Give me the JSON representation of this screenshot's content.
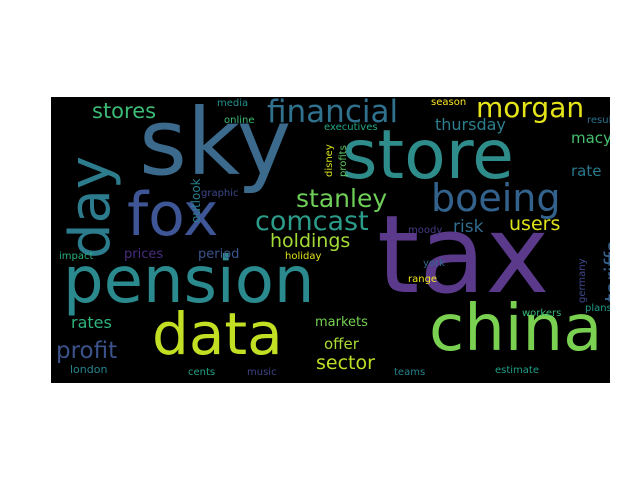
{
  "wordcloud": {
    "background": "#000000",
    "words": [
      {
        "text": "tax",
        "color": "#5b3a8c",
        "vertical": false
      },
      {
        "text": "sky",
        "color": "#3b6a8c",
        "vertical": false
      },
      {
        "text": "store",
        "color": "#2e8c8a",
        "vertical": false
      },
      {
        "text": "pension",
        "color": "#2a8a8e",
        "vertical": false
      },
      {
        "text": "china",
        "color": "#7ad151",
        "vertical": false
      },
      {
        "text": "data",
        "color": "#c2df23",
        "vertical": false
      },
      {
        "text": "fox",
        "color": "#3e5596",
        "vertical": false
      },
      {
        "text": "day",
        "color": "#2c7c8e",
        "vertical": true
      },
      {
        "text": "boeing",
        "color": "#33628d",
        "vertical": false
      },
      {
        "text": "financial",
        "color": "#30718e",
        "vertical": false
      },
      {
        "text": "morgan",
        "color": "#e5e419",
        "vertical": false
      },
      {
        "text": "comcast",
        "color": "#2b9b8a",
        "vertical": false
      },
      {
        "text": "stanley",
        "color": "#6ece58",
        "vertical": false
      },
      {
        "text": "profit",
        "color": "#3b528b",
        "vertical": false
      },
      {
        "text": "stores",
        "color": "#3bbb75",
        "vertical": false
      },
      {
        "text": "holdings",
        "color": "#a2da37",
        "vertical": false
      },
      {
        "text": "tariffs",
        "color": "#34618d",
        "vertical": true
      },
      {
        "text": "users",
        "color": "#dde318",
        "vertical": false
      },
      {
        "text": "sector",
        "color": "#bddf26",
        "vertical": false
      },
      {
        "text": "thursday",
        "color": "#2c7e8e",
        "vertical": false
      },
      {
        "text": "rates",
        "color": "#2fb47c",
        "vertical": false
      },
      {
        "text": "risk",
        "color": "#2f6c8e",
        "vertical": false
      },
      {
        "text": "macy",
        "color": "#46c06f",
        "vertical": false
      },
      {
        "text": "rate",
        "color": "#2a788e",
        "vertical": false
      },
      {
        "text": "offer",
        "color": "#a8db34",
        "vertical": false
      },
      {
        "text": "markets",
        "color": "#75d054",
        "vertical": false
      },
      {
        "text": "period",
        "color": "#3a548c",
        "vertical": false
      },
      {
        "text": "prices",
        "color": "#472d7b",
        "vertical": false
      },
      {
        "text": "outlook",
        "color": "#277f8e",
        "vertical": true
      },
      {
        "text": "london",
        "color": "#25858e",
        "vertical": false
      },
      {
        "text": "media",
        "color": "#21918c",
        "vertical": false
      },
      {
        "text": "online",
        "color": "#3dbc74",
        "vertical": false
      },
      {
        "text": "executives",
        "color": "#22a884",
        "vertical": false
      },
      {
        "text": "season",
        "color": "#fde725",
        "vertical": false
      },
      {
        "text": "results",
        "color": "#2c738e",
        "vertical": false
      },
      {
        "text": "disney",
        "color": "#dae319",
        "vertical": true
      },
      {
        "text": "profits",
        "color": "#5ec962",
        "vertical": true
      },
      {
        "text": "graphic",
        "color": "#3e4989",
        "vertical": false
      },
      {
        "text": "moody",
        "color": "#443a83",
        "vertical": false
      },
      {
        "text": "impact",
        "color": "#2db27d",
        "vertical": false
      },
      {
        "text": "holiday",
        "color": "#e2e418",
        "vertical": false
      },
      {
        "text": "york",
        "color": "#31688e",
        "vertical": false
      },
      {
        "text": "range",
        "color": "#f1e51d",
        "vertical": false
      },
      {
        "text": "germany",
        "color": "#3f4889",
        "vertical": true
      },
      {
        "text": "workers",
        "color": "#38b977",
        "vertical": false
      },
      {
        "text": "plans",
        "color": "#1f9e89",
        "vertical": false
      },
      {
        "text": "cents",
        "color": "#20a386",
        "vertical": false
      },
      {
        "text": "music",
        "color": "#414487",
        "vertical": false
      },
      {
        "text": "teams",
        "color": "#26828e",
        "vertical": false
      },
      {
        "text": "estimate",
        "color": "#1fa088",
        "vertical": false
      }
    ]
  }
}
